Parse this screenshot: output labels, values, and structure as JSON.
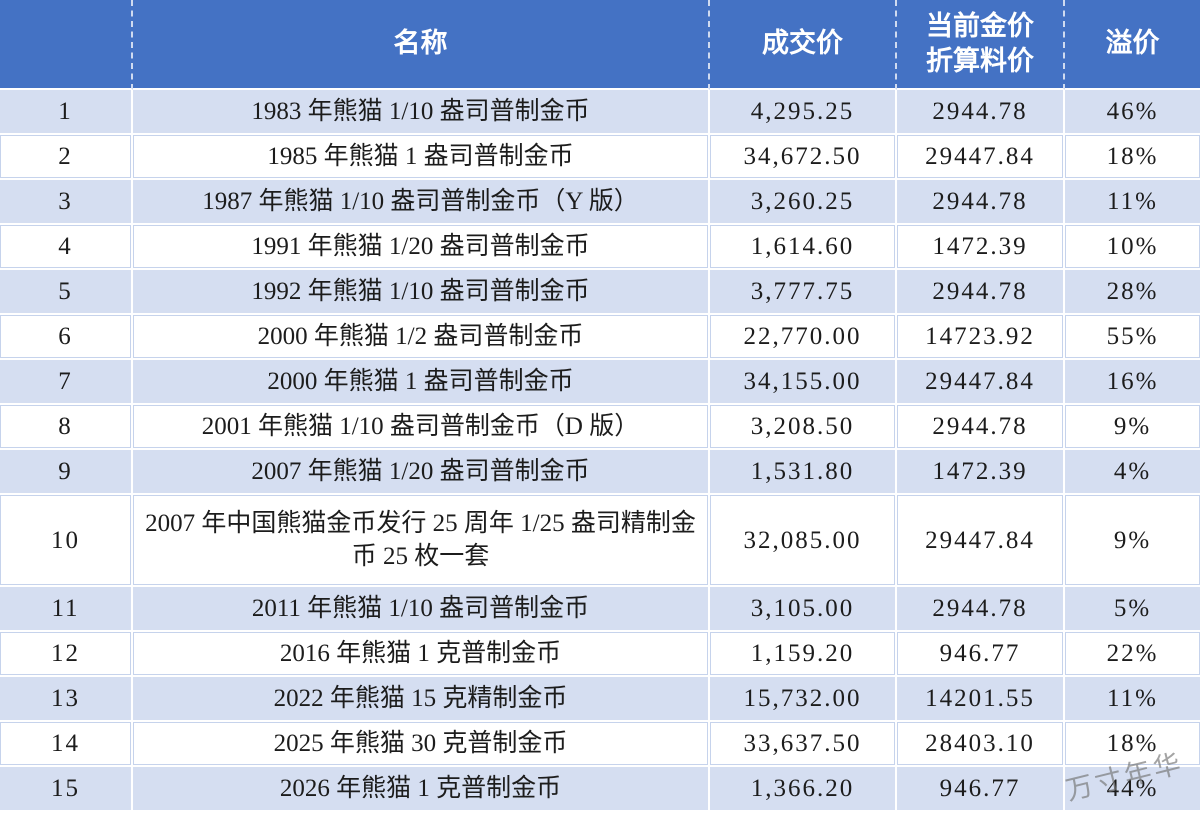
{
  "chart_data": {
    "type": "table",
    "header": {
      "index": "",
      "name": "名称",
      "price": "成交价",
      "gold_line1": "当前金价",
      "gold_line2": "折算料价",
      "premium": "溢价"
    },
    "rows": [
      {
        "index": "1",
        "name": "1983 年熊猫 1/10 盎司普制金币",
        "price": "4,295.25",
        "gold": "2944.78",
        "premium": "46%"
      },
      {
        "index": "2",
        "name": "1985 年熊猫 1 盎司普制金币",
        "price": "34,672.50",
        "gold": "29447.84",
        "premium": "18%"
      },
      {
        "index": "3",
        "name": "1987 年熊猫 1/10 盎司普制金币（Y 版）",
        "price": "3,260.25",
        "gold": "2944.78",
        "premium": "11%"
      },
      {
        "index": "4",
        "name": "1991 年熊猫 1/20 盎司普制金币",
        "price": "1,614.60",
        "gold": "1472.39",
        "premium": "10%"
      },
      {
        "index": "5",
        "name": "1992 年熊猫 1/10 盎司普制金币",
        "price": "3,777.75",
        "gold": "2944.78",
        "premium": "28%"
      },
      {
        "index": "6",
        "name": "2000 年熊猫 1/2 盎司普制金币",
        "price": "22,770.00",
        "gold": "14723.92",
        "premium": "55%"
      },
      {
        "index": "7",
        "name": "2000 年熊猫 1 盎司普制金币",
        "price": "34,155.00",
        "gold": "29447.84",
        "premium": "16%"
      },
      {
        "index": "8",
        "name": "2001 年熊猫 1/10 盎司普制金币（D 版）",
        "price": "3,208.50",
        "gold": "2944.78",
        "premium": "9%"
      },
      {
        "index": "9",
        "name": "2007 年熊猫 1/20 盎司普制金币",
        "price": "1,531.80",
        "gold": "1472.39",
        "premium": "4%"
      },
      {
        "index": "10",
        "name": "2007 年中国熊猫金币发行 25 周年 1/25 盎司精制金币 25 枚一套",
        "price": "32,085.00",
        "gold": "29447.84",
        "premium": "9%"
      },
      {
        "index": "11",
        "name": "2011 年熊猫 1/10 盎司普制金币",
        "price": "3,105.00",
        "gold": "2944.78",
        "premium": "5%"
      },
      {
        "index": "12",
        "name": "2016 年熊猫 1 克普制金币",
        "price": "1,159.20",
        "gold": "946.77",
        "premium": "22%"
      },
      {
        "index": "13",
        "name": "2022 年熊猫 15 克精制金币",
        "price": "15,732.00",
        "gold": "14201.55",
        "premium": "11%"
      },
      {
        "index": "14",
        "name": "2025 年熊猫 30 克普制金币",
        "price": "33,637.50",
        "gold": "28403.10",
        "premium": "18%"
      },
      {
        "index": "15",
        "name": "2026 年熊猫 1 克普制金币",
        "price": "1,366.20",
        "gold": "946.77",
        "premium": "44%"
      }
    ]
  },
  "watermark": "万寸年华",
  "colors": {
    "header_bg": "#4472c4",
    "header_text": "#ffffff",
    "row_alt_bg": "#d5def1",
    "grid_line": "#c6d3ec"
  }
}
